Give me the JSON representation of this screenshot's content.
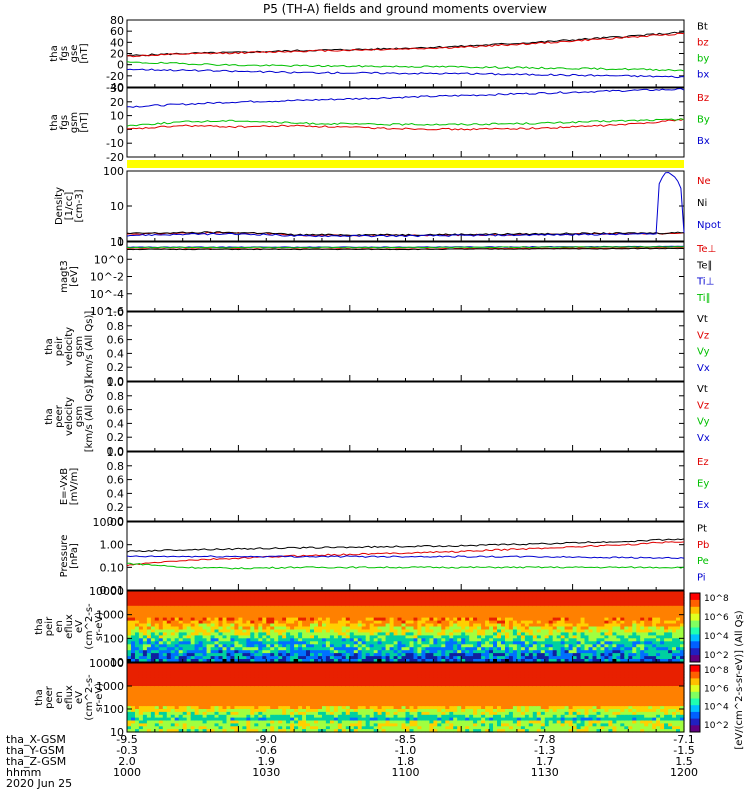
{
  "title": "P5 (TH-A) fields and ground moments overview",
  "colors": {
    "black": "#000000",
    "red": "#e00000",
    "green": "#00c000",
    "blue": "#0000d0",
    "yellow": "#ffff00"
  },
  "footer": {
    "row_labels": [
      "tha_X-GSM",
      "tha_Y-GSM",
      "tha_Z-GSM",
      "hhmm",
      "2020 Jun 25"
    ],
    "columns": [
      {
        "x": "-9.5",
        "y": "-0.3",
        "z": "2.0",
        "t": "1000"
      },
      {
        "x": "-9.0",
        "y": "-0.6",
        "z": "1.9",
        "t": "1030"
      },
      {
        "x": "-8.5",
        "y": "-1.0",
        "z": "1.8",
        "t": "1100"
      },
      {
        "x": "-7.8",
        "y": "-1.3",
        "z": "1.7",
        "t": "1130"
      },
      {
        "x": "-7.1",
        "y": "-1.5",
        "z": "1.5",
        "t": "1200"
      }
    ]
  },
  "colorbar": {
    "label": "[eV/(cm^2-s-sr-eV)] (All Qs)",
    "ticks_top": [
      "10^8",
      "10^6",
      "10^4",
      "10^2"
    ],
    "ticks_bottom": [
      "10^8",
      "10^6",
      "10^4",
      "10^2"
    ]
  },
  "chart_data": [
    {
      "type": "line",
      "ylabel": [
        "tha",
        "fgs",
        "gse",
        "[nT]"
      ],
      "ylim": [
        -40,
        80
      ],
      "yticks": [
        "80",
        "60",
        "40",
        "20",
        "0",
        "-20",
        "-40"
      ],
      "x": [
        0,
        0.1,
        0.2,
        0.3,
        0.45,
        0.6,
        0.75,
        0.9,
        1.0
      ],
      "series": [
        {
          "name": "Bt",
          "color": "#000000",
          "values": [
            16,
            20,
            22,
            25,
            28,
            33,
            41,
            51,
            58
          ]
        },
        {
          "name": "bz",
          "color": "#e00000",
          "values": [
            15,
            19,
            21,
            24,
            27,
            31,
            39,
            49,
            56
          ]
        },
        {
          "name": "by",
          "color": "#00c000",
          "values": [
            4,
            2,
            -1,
            -2,
            -3,
            -4,
            -6,
            -8,
            -10
          ]
        },
        {
          "name": "bx",
          "color": "#0000d0",
          "values": [
            -8,
            -10,
            -12,
            -14,
            -15,
            -16,
            -18,
            -20,
            -22
          ]
        }
      ]
    },
    {
      "type": "line",
      "ylabel": [
        "tha",
        "fgs",
        "gsm",
        "[nT]"
      ],
      "ylim": [
        -25,
        30
      ],
      "yticks": [
        "30",
        "20",
        "10",
        "0",
        "-10",
        "-20"
      ],
      "x": [
        0,
        0.1,
        0.2,
        0.3,
        0.45,
        0.6,
        0.75,
        0.9,
        1.0
      ],
      "series": [
        {
          "name": "Bz",
          "color": "#e00000",
          "values": [
            -3,
            0,
            -1,
            0,
            -2,
            -3,
            -2,
            1,
            5
          ]
        },
        {
          "name": "By",
          "color": "#00c000",
          "values": [
            0,
            3,
            4,
            2,
            1,
            1,
            2,
            4,
            5
          ]
        },
        {
          "name": "Bx",
          "color": "#0000d0",
          "values": [
            15,
            17,
            19,
            20,
            22,
            24,
            26,
            28,
            29
          ]
        }
      ]
    },
    {
      "type": "line",
      "ylabel": [
        "Density",
        "[1/cc]",
        "[cm-3]"
      ],
      "ylim": [
        0.2,
        200
      ],
      "scale": "log",
      "yticks": [
        "100",
        "10",
        "1"
      ],
      "x": [
        0,
        0.15,
        0.25,
        0.3,
        0.5,
        0.7,
        0.95,
        0.97,
        1.0
      ],
      "series": [
        {
          "name": "Ne",
          "color": "#e00000",
          "values": [
            0.4,
            0.45,
            0.42,
            0.35,
            0.35,
            0.38,
            0.42,
            0.42,
            0.45
          ]
        },
        {
          "name": "Ni",
          "color": "#000000",
          "values": [
            0.42,
            0.47,
            0.44,
            0.37,
            0.37,
            0.4,
            0.44,
            0.44,
            0.47
          ]
        },
        {
          "name": "Npot",
          "color": "#0000d0",
          "values": [
            0.35,
            0.4,
            0.38,
            0.33,
            0.33,
            0.36,
            0.4,
            200,
            0.42
          ]
        }
      ]
    },
    {
      "type": "line",
      "ylabel": [
        "magt3",
        "[eV]"
      ],
      "ylim": [
        1e-05,
        100
      ],
      "scale": "log",
      "yticks": [
        "10",
        "10^0",
        "10^-2",
        "10^-4",
        "10^-6"
      ],
      "x": [
        0,
        0.5,
        1.0
      ],
      "series": [
        {
          "name": "Te⊥",
          "color": "#e00000",
          "values": [
            20,
            20,
            25
          ]
        },
        {
          "name": "Te∥",
          "color": "#000000",
          "values": [
            18,
            18,
            22
          ]
        },
        {
          "name": "Ti⊥",
          "color": "#0000d0",
          "values": [
            30,
            30,
            35
          ]
        },
        {
          "name": "Ti∥",
          "color": "#00c000",
          "values": [
            28,
            28,
            33
          ]
        }
      ]
    },
    {
      "type": "line",
      "ylabel": [
        "tha",
        "peir",
        "velocity",
        "gsm",
        "[km/s (All Qs)]"
      ],
      "ylim": [
        0,
        1
      ],
      "yticks": [
        "1.0",
        "0.8",
        "0.6",
        "0.4",
        "0.2",
        "0.0"
      ],
      "legend": [
        {
          "name": "Vt",
          "color": "#000000"
        },
        {
          "name": "Vz",
          "color": "#e00000"
        },
        {
          "name": "Vy",
          "color": "#00c000"
        },
        {
          "name": "Vx",
          "color": "#0000d0"
        }
      ]
    },
    {
      "type": "line",
      "ylabel": [
        "tha",
        "peer",
        "velocity",
        "gsm",
        "[km/s (All Qs)]"
      ],
      "ylim": [
        0,
        1
      ],
      "yticks": [
        "1.0",
        "0.8",
        "0.6",
        "0.4",
        "0.2",
        "0.0"
      ],
      "legend": [
        {
          "name": "Vt",
          "color": "#000000"
        },
        {
          "name": "Vz",
          "color": "#e00000"
        },
        {
          "name": "Vy",
          "color": "#00c000"
        },
        {
          "name": "Vx",
          "color": "#0000d0"
        }
      ]
    },
    {
      "type": "line",
      "ylabel": [
        "E=-VxB",
        "[mV/m]"
      ],
      "ylim": [
        0,
        1
      ],
      "yticks": [
        "1.0",
        "0.8",
        "0.6",
        "0.4",
        "0.2",
        "0.0"
      ],
      "legend": [
        {
          "name": "Ez",
          "color": "#e00000"
        },
        {
          "name": "Ey",
          "color": "#00c000"
        },
        {
          "name": "Ex",
          "color": "#0000d0"
        }
      ]
    },
    {
      "type": "line",
      "ylabel": [
        "Pressure",
        "[nPa]"
      ],
      "ylim": [
        0.01,
        10
      ],
      "scale": "log",
      "yticks": [
        "10.00",
        "1.00",
        "0.10",
        "0.01"
      ],
      "x": [
        0,
        0.1,
        0.2,
        0.3,
        0.45,
        0.6,
        0.75,
        0.9,
        1.0
      ],
      "series": [
        {
          "name": "Pt",
          "color": "#000000",
          "values": [
            0.5,
            0.6,
            0.65,
            0.72,
            0.8,
            0.9,
            1.1,
            1.4,
            1.8
          ]
        },
        {
          "name": "Pb",
          "color": "#e00000",
          "values": [
            0.12,
            0.2,
            0.25,
            0.32,
            0.4,
            0.5,
            0.7,
            1.0,
            1.4
          ]
        },
        {
          "name": "Pe",
          "color": "#00c000",
          "values": [
            0.15,
            0.1,
            0.09,
            0.1,
            0.1,
            0.1,
            0.1,
            0.1,
            0.1
          ]
        },
        {
          "name": "Pi",
          "color": "#0000d0",
          "values": [
            0.3,
            0.3,
            0.3,
            0.3,
            0.3,
            0.3,
            0.29,
            0.27,
            0.25
          ]
        }
      ]
    },
    {
      "type": "heatmap",
      "ylabel": [
        "tha",
        "peir",
        "en",
        "eflux",
        "eV",
        "(cm^2-s-",
        "sr-eV)"
      ],
      "ylim": [
        10,
        20000
      ],
      "scale": "log",
      "yticks": [
        "10000",
        "1000",
        "100",
        "10"
      ]
    },
    {
      "type": "heatmap",
      "ylabel": [
        "tha",
        "peer",
        "en",
        "eflux",
        "eV",
        "(cm^2-s-",
        "sr-eV)"
      ],
      "ylim": [
        10,
        20000
      ],
      "scale": "log",
      "yticks": [
        "10000",
        "1000",
        "100",
        "10"
      ]
    }
  ]
}
